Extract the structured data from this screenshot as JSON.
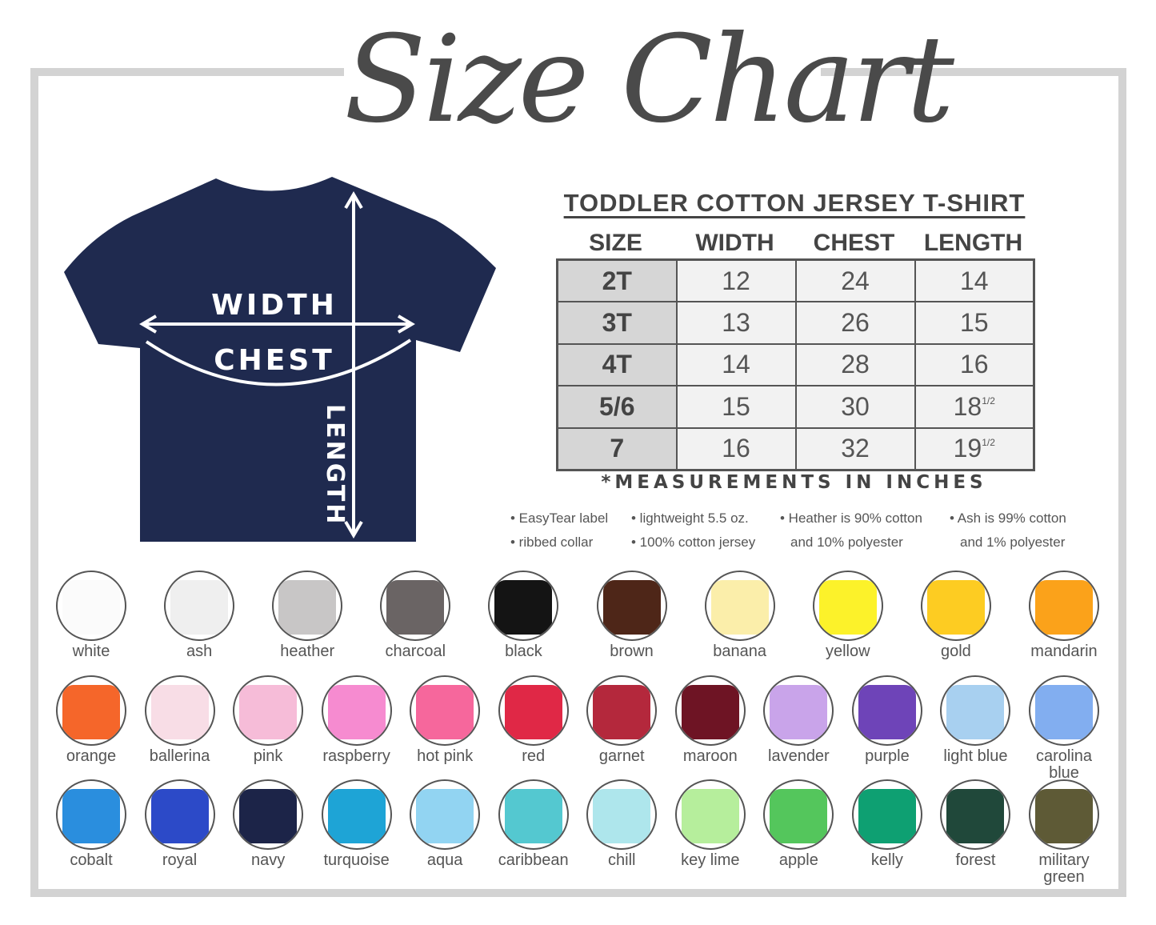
{
  "title": "Size Chart",
  "product": {
    "name": "TODDLER COTTON JERSEY T-SHIRT",
    "shirt_color": "#1f2a4f",
    "diagram_labels": {
      "width": "WIDTH",
      "chest": "CHEST",
      "length": "LENGTH"
    }
  },
  "table": {
    "headers": [
      "SIZE",
      "WIDTH",
      "CHEST",
      "LENGTH"
    ],
    "rows": [
      {
        "size": "2T",
        "width": "12",
        "chest": "24",
        "length": "14",
        "length_frac": ""
      },
      {
        "size": "3T",
        "width": "13",
        "chest": "26",
        "length": "15",
        "length_frac": ""
      },
      {
        "size": "4T",
        "width": "14",
        "chest": "28",
        "length": "16",
        "length_frac": ""
      },
      {
        "size": "5/6",
        "width": "15",
        "chest": "30",
        "length": "18",
        "length_frac": "1/2"
      },
      {
        "size": "7",
        "width": "16",
        "chest": "32",
        "length": "19",
        "length_frac": "1/2"
      }
    ]
  },
  "footnote": "*MEASUREMENTS IN INCHES",
  "notes": {
    "col1": [
      "• EasyTear label",
      "• ribbed collar"
    ],
    "col2": [
      "• lightweight 5.5 oz.",
      "• 100% cotton jersey"
    ],
    "col3": [
      "• Heather is 90% cotton",
      "and 10% polyester"
    ],
    "col4": [
      "• Ash is 99% cotton",
      "and 1% polyester"
    ]
  },
  "colors": [
    [
      {
        "name": "white",
        "hex": "#fbfbfb"
      },
      {
        "name": "ash",
        "hex": "#efefef"
      },
      {
        "name": "heather",
        "hex": "#c8c6c6"
      },
      {
        "name": "charcoal",
        "hex": "#6a6464"
      },
      {
        "name": "black",
        "hex": "#141414"
      },
      {
        "name": "brown",
        "hex": "#4e2618"
      },
      {
        "name": "banana",
        "hex": "#fbeeaa"
      },
      {
        "name": "yellow",
        "hex": "#fcf22a"
      },
      {
        "name": "gold",
        "hex": "#fdcc22"
      },
      {
        "name": "mandarin",
        "hex": "#fba21a"
      }
    ],
    [
      {
        "name": "orange",
        "hex": "#f5662a"
      },
      {
        "name": "ballerina",
        "hex": "#f8dde6"
      },
      {
        "name": "pink",
        "hex": "#f6bcd8"
      },
      {
        "name": "raspberry",
        "hex": "#f68bd0"
      },
      {
        "name": "hot pink",
        "hex": "#f6679c"
      },
      {
        "name": "red",
        "hex": "#e02846"
      },
      {
        "name": "garnet",
        "hex": "#b4283c"
      },
      {
        "name": "maroon",
        "hex": "#6e1424"
      },
      {
        "name": "lavender",
        "hex": "#c9a4ea"
      },
      {
        "name": "purple",
        "hex": "#6e44b8"
      },
      {
        "name": "light blue",
        "hex": "#a8d0f0"
      },
      {
        "name": "carolina blue",
        "hex": "#82aef0"
      }
    ],
    [
      {
        "name": "cobalt",
        "hex": "#2a8ede"
      },
      {
        "name": "royal",
        "hex": "#2c4ac8"
      },
      {
        "name": "navy",
        "hex": "#1c2448"
      },
      {
        "name": "turquoise",
        "hex": "#1ea4d6"
      },
      {
        "name": "aqua",
        "hex": "#92d4f2"
      },
      {
        "name": "caribbean",
        "hex": "#54c8d0"
      },
      {
        "name": "chill",
        "hex": "#aee6ec"
      },
      {
        "name": "key lime",
        "hex": "#b6ee9c"
      },
      {
        "name": "apple",
        "hex": "#54c65c"
      },
      {
        "name": "kelly",
        "hex": "#0ea072"
      },
      {
        "name": "forest",
        "hex": "#20483a"
      },
      {
        "name": "military green",
        "hex": "#5e5a36"
      }
    ]
  ]
}
